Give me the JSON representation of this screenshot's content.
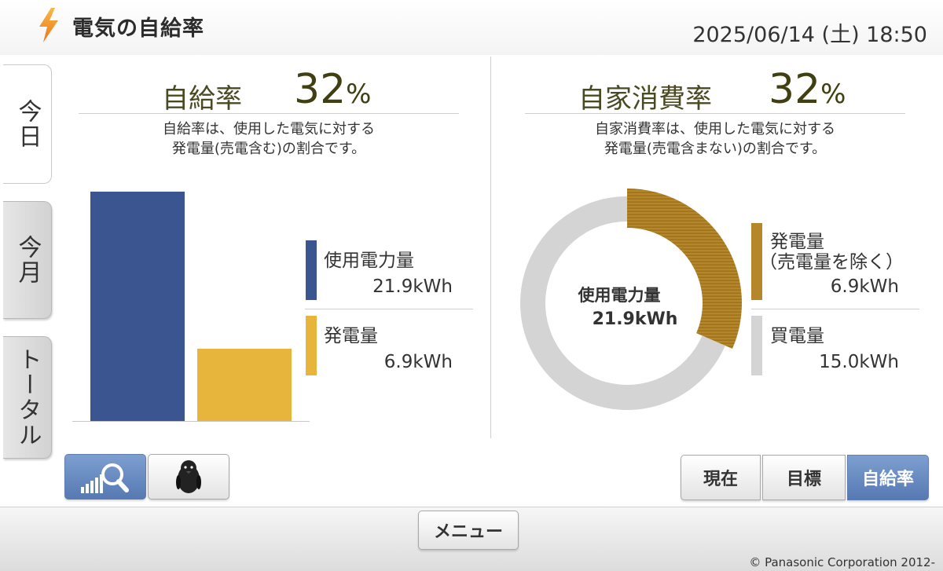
{
  "header": {
    "title": "電気の自給率",
    "datetime": "2025/06/14 (土) 18:50",
    "icon": "lightning-bolt-icon"
  },
  "side_tabs": [
    {
      "label": "今日",
      "active": true
    },
    {
      "label": "今月",
      "active": false
    },
    {
      "label": "トータル",
      "active": false
    }
  ],
  "self_sufficiency": {
    "label": "自給率",
    "value": "32",
    "unit": "%",
    "desc_line1": "自給率は、使用した電気に対する",
    "desc_line2": "発電量(売電含む)の割合です。",
    "legend": [
      {
        "label": "使用電力量",
        "value": "21.9kWh",
        "color": "#3a5590"
      },
      {
        "label": "発電量",
        "value": "6.9kWh",
        "color": "#e8b53c"
      }
    ]
  },
  "self_consumption": {
    "label": "自家消費率",
    "value": "32",
    "unit": "%",
    "desc_line1": "自家消費率は、使用した電気に対する",
    "desc_line2": "発電量(売電含まない)の割合です。",
    "center_label": "使用電力量",
    "center_value": "21.9kWh",
    "legend": [
      {
        "label": "発電量",
        "sublabel": "（売電量を除く）",
        "value": "6.9kWh",
        "color": "#b5862a"
      },
      {
        "label": "買電量",
        "value": "15.0kWh",
        "color": "#d4d4d4"
      }
    ]
  },
  "chart_data": [
    {
      "type": "bar",
      "categories": [
        "使用電力量",
        "発電量"
      ],
      "values": [
        21.9,
        6.9
      ],
      "unit": "kWh",
      "colors": [
        "#3a5590",
        "#e8b53c"
      ]
    },
    {
      "type": "pie",
      "categories": [
        "発電量（売電量を除く）",
        "買電量"
      ],
      "values": [
        6.9,
        15.0
      ],
      "unit": "kWh",
      "colors": [
        "#b5862a",
        "#d4d4d4"
      ]
    }
  ],
  "bottom_left_buttons": [
    {
      "name": "graph-zoom-button",
      "icon": "bar-magnifier-icon",
      "selected": true
    },
    {
      "name": "penguin-button",
      "icon": "penguin-icon",
      "selected": false
    }
  ],
  "view_buttons": [
    {
      "label": "現在",
      "selected": false
    },
    {
      "label": "目標",
      "selected": false
    },
    {
      "label": "自給率",
      "selected": true
    }
  ],
  "footer": {
    "menu_label": "メニュー",
    "copyright": "© Panasonic Corporation 2012-"
  }
}
